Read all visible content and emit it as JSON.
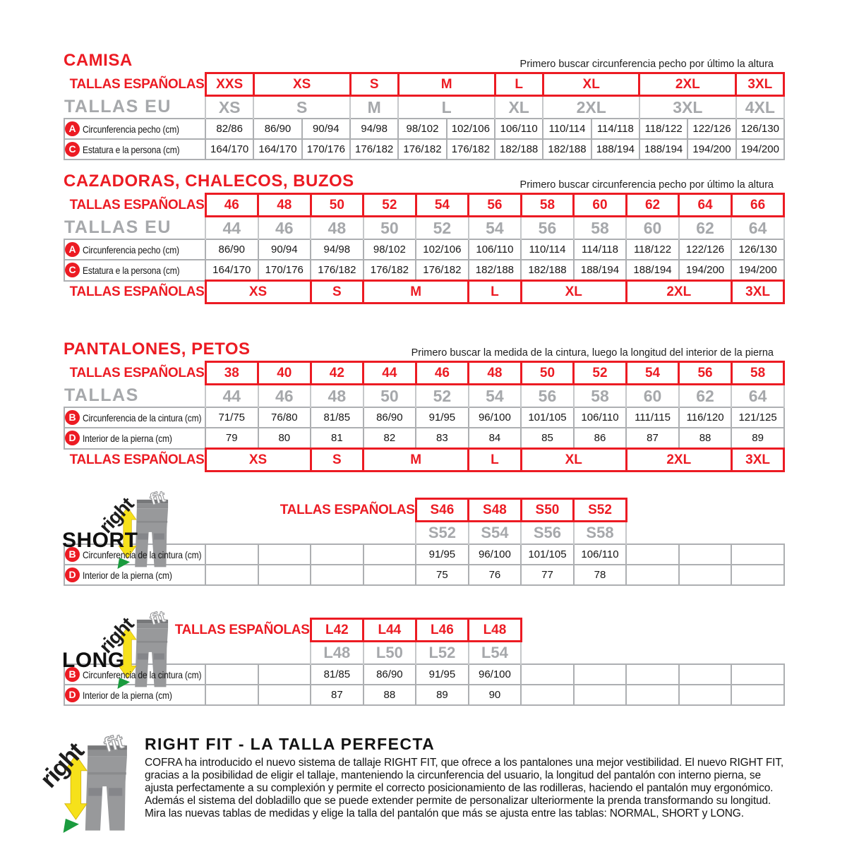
{
  "tables": {
    "camisa": {
      "title": "CAMISA",
      "note": "Primero buscar circunferencia pecho por último la altura",
      "es_label": "TALLAS ESPAÑOLAS",
      "eu_label": "TALLAS EU",
      "cols": 12,
      "es_sizes": [
        {
          "t": "XXS",
          "s": 1
        },
        {
          "t": "XS",
          "s": 2
        },
        {
          "t": "S",
          "s": 1
        },
        {
          "t": "M",
          "s": 2
        },
        {
          "t": "L",
          "s": 1
        },
        {
          "t": "XL",
          "s": 2
        },
        {
          "t": "2XL",
          "s": 2
        },
        {
          "t": "3XL",
          "s": 1
        }
      ],
      "eu_sizes": [
        {
          "t": "XS",
          "s": 1
        },
        {
          "t": "S",
          "s": 2
        },
        {
          "t": "M",
          "s": 1
        },
        {
          "t": "L",
          "s": 2
        },
        {
          "t": "XL",
          "s": 1
        },
        {
          "t": "2XL",
          "s": 2
        },
        {
          "t": "3XL",
          "s": 2
        },
        {
          "t": "4XL",
          "s": 1
        }
      ],
      "rows": [
        {
          "icon": "A",
          "label": "Circunferencia pecho (cm)",
          "values": [
            "82/86",
            "86/90",
            "90/94",
            "94/98",
            "98/102",
            "102/106",
            "106/110",
            "110/114",
            "114/118",
            "118/122",
            "122/126",
            "126/130"
          ]
        },
        {
          "icon": "C",
          "label": "Estatura e la persona (cm)",
          "values": [
            "164/170",
            "164/170",
            "170/176",
            "176/182",
            "176/182",
            "176/182",
            "182/188",
            "182/188",
            "188/194",
            "188/194",
            "194/200",
            "194/200"
          ]
        }
      ]
    },
    "cazadoras": {
      "title": "CAZADORAS, CHALECOS, BUZOS",
      "note": "Primero buscar circunferencia pecho por último la altura",
      "es_label": "TALLAS ESPAÑOLAS",
      "eu_label": "TALLAS EU",
      "cols": 11,
      "es_sizes": [
        {
          "t": "46",
          "s": 1
        },
        {
          "t": "48",
          "s": 1
        },
        {
          "t": "50",
          "s": 1
        },
        {
          "t": "52",
          "s": 1
        },
        {
          "t": "54",
          "s": 1
        },
        {
          "t": "56",
          "s": 1
        },
        {
          "t": "58",
          "s": 1
        },
        {
          "t": "60",
          "s": 1
        },
        {
          "t": "62",
          "s": 1
        },
        {
          "t": "64",
          "s": 1
        },
        {
          "t": "66",
          "s": 1
        }
      ],
      "eu_sizes": [
        {
          "t": "44",
          "s": 1
        },
        {
          "t": "46",
          "s": 1
        },
        {
          "t": "48",
          "s": 1
        },
        {
          "t": "50",
          "s": 1
        },
        {
          "t": "52",
          "s": 1
        },
        {
          "t": "54",
          "s": 1
        },
        {
          "t": "56",
          "s": 1
        },
        {
          "t": "58",
          "s": 1
        },
        {
          "t": "60",
          "s": 1
        },
        {
          "t": "62",
          "s": 1
        },
        {
          "t": "64",
          "s": 1
        }
      ],
      "rows": [
        {
          "icon": "A",
          "label": "Circunferencia pecho (cm)",
          "values": [
            "86/90",
            "90/94",
            "94/98",
            "98/102",
            "102/106",
            "106/110",
            "110/114",
            "114/118",
            "118/122",
            "122/126",
            "126/130"
          ]
        },
        {
          "icon": "C",
          "label": "Estatura e la persona (cm)",
          "values": [
            "164/170",
            "170/176",
            "176/182",
            "176/182",
            "176/182",
            "182/188",
            "182/188",
            "188/194",
            "188/194",
            "194/200",
            "194/200"
          ]
        }
      ],
      "bottom": {
        "label": "TALLAS ESPAÑOLAS",
        "sizes": [
          {
            "t": "XS",
            "s": 2
          },
          {
            "t": "S",
            "s": 1
          },
          {
            "t": "M",
            "s": 2
          },
          {
            "t": "L",
            "s": 1
          },
          {
            "t": "XL",
            "s": 2
          },
          {
            "t": "2XL",
            "s": 2
          },
          {
            "t": "3XL",
            "s": 1
          }
        ]
      }
    },
    "pantalones": {
      "title": "PANTALONES, PETOS",
      "note": "Primero buscar la medida de la cintura, luego la longitud del interior de la pierna",
      "es_label": "TALLAS ESPAÑOLAS",
      "eu_label": "TALLAS",
      "cols": 11,
      "es_sizes": [
        {
          "t": "38",
          "s": 1
        },
        {
          "t": "40",
          "s": 1
        },
        {
          "t": "42",
          "s": 1
        },
        {
          "t": "44",
          "s": 1
        },
        {
          "t": "46",
          "s": 1
        },
        {
          "t": "48",
          "s": 1
        },
        {
          "t": "50",
          "s": 1
        },
        {
          "t": "52",
          "s": 1
        },
        {
          "t": "54",
          "s": 1
        },
        {
          "t": "56",
          "s": 1
        },
        {
          "t": "58",
          "s": 1
        }
      ],
      "eu_sizes": [
        {
          "t": "44",
          "s": 1
        },
        {
          "t": "46",
          "s": 1
        },
        {
          "t": "48",
          "s": 1
        },
        {
          "t": "50",
          "s": 1
        },
        {
          "t": "52",
          "s": 1
        },
        {
          "t": "54",
          "s": 1
        },
        {
          "t": "56",
          "s": 1
        },
        {
          "t": "58",
          "s": 1
        },
        {
          "t": "60",
          "s": 1
        },
        {
          "t": "62",
          "s": 1
        },
        {
          "t": "64",
          "s": 1
        }
      ],
      "rows": [
        {
          "icon": "B",
          "label": "Circunferencia de la cintura (cm)",
          "values": [
            "71/75",
            "76/80",
            "81/85",
            "86/90",
            "91/95",
            "96/100",
            "101/105",
            "106/110",
            "111/115",
            "116/120",
            "121/125"
          ]
        },
        {
          "icon": "D",
          "label": "Interior de la pierna (cm)",
          "values": [
            "79",
            "80",
            "81",
            "82",
            "83",
            "84",
            "85",
            "86",
            "87",
            "88",
            "89"
          ]
        }
      ],
      "bottom": {
        "label": "TALLAS ESPAÑOLAS",
        "sizes": [
          {
            "t": "XS",
            "s": 2
          },
          {
            "t": "S",
            "s": 1
          },
          {
            "t": "M",
            "s": 2
          },
          {
            "t": "L",
            "s": 1
          },
          {
            "t": "XL",
            "s": 2
          },
          {
            "t": "2XL",
            "s": 2
          },
          {
            "t": "3XL",
            "s": 1
          }
        ]
      }
    }
  },
  "variants": {
    "short": {
      "name": "SHORT",
      "es_label": "TALLAS ESPAÑOLAS",
      "cols": 11,
      "lead": 4,
      "trail": 3,
      "es_sizes": [
        "S46",
        "S48",
        "S50",
        "S52"
      ],
      "eu_sizes": [
        "S52",
        "S54",
        "S56",
        "S58"
      ],
      "rows": [
        {
          "icon": "B",
          "label": "Circunferencia de la cintura (cm)",
          "values": [
            "",
            "",
            "",
            "",
            "91/95",
            "96/100",
            "101/105",
            "106/110",
            "",
            "",
            ""
          ]
        },
        {
          "icon": "D",
          "label": "Interior de la pierna (cm)",
          "values": [
            "",
            "",
            "",
            "",
            "75",
            "76",
            "77",
            "78",
            "",
            "",
            ""
          ]
        }
      ]
    },
    "long": {
      "name": "LONG",
      "es_label": "TALLAS ESPAÑOLAS",
      "cols": 11,
      "lead": 2,
      "trail": 5,
      "es_sizes": [
        "L42",
        "L44",
        "L46",
        "L48"
      ],
      "eu_sizes": [
        "L48",
        "L50",
        "L52",
        "L54"
      ],
      "rows": [
        {
          "icon": "B",
          "label": "Circunferencia de la cintura (cm)",
          "values": [
            "",
            "",
            "81/85",
            "86/90",
            "91/95",
            "96/100",
            "",
            "",
            "",
            "",
            ""
          ]
        },
        {
          "icon": "D",
          "label": "Interior de la pierna (cm)",
          "values": [
            "",
            "",
            "87",
            "88",
            "89",
            "90",
            "",
            "",
            "",
            "",
            ""
          ]
        }
      ]
    }
  },
  "rightfit": {
    "title": "RIGHT FIT - LA TALLA PERFECTA",
    "text": "COFRA ha introducido el nuevo sistema de tallaje RIGHT FIT, que ofrece a los pantalones una mejor vestibilidad. El nuevo RIGHT FIT, gracias a la posibilidad de eligir el tallaje, manteniendo la circunferencia del usuario, la longitud del pantalón con interno pierna, se ajusta perfectamente a su complexión y permite el correcto posicionamiento de las rodilleras, haciendo el pantalón muy ergonómico. Además el sistema del dobladillo que se puede extender permite de personalizar ulteriormente la prenda transformando su longitud. Mira las nuevas tablas de medidas y elige la talla del pantalón que más se ajusta entre las tablas: NORMAL, SHORT y LONG."
  },
  "rightfit_logo": {
    "right": "right",
    "fit": "fit"
  },
  "colors": {
    "accent_red": "#ec1b23",
    "muted_gray": "#a6a8ab"
  }
}
